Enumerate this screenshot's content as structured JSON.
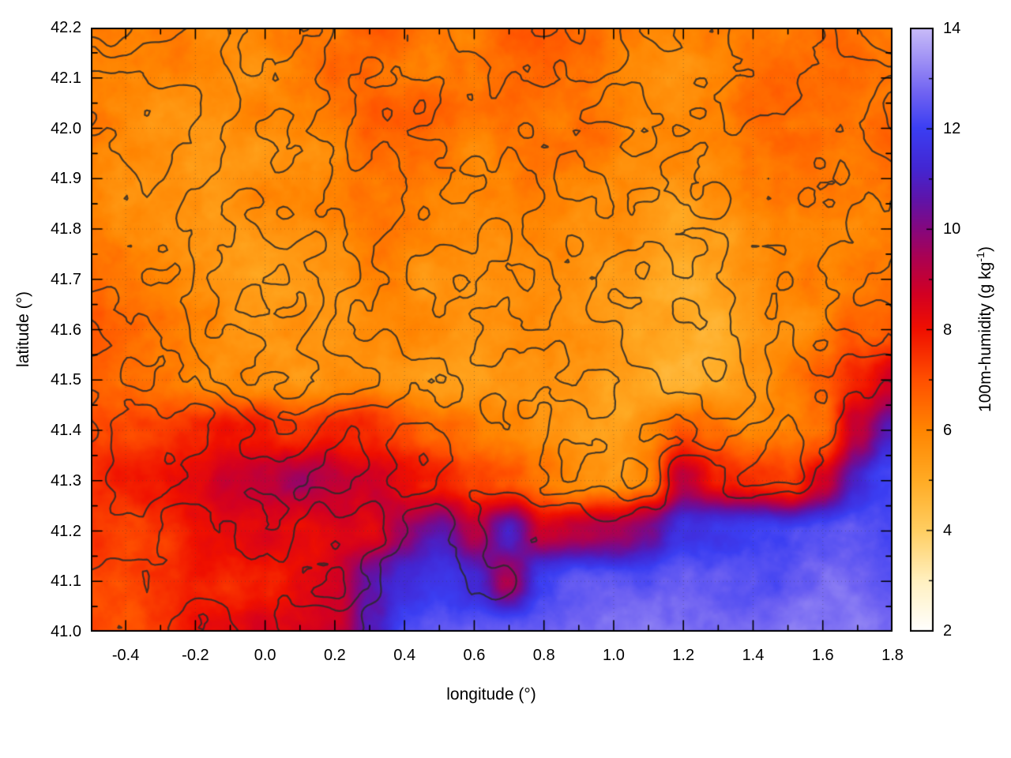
{
  "chart_data": {
    "type": "heatmap",
    "title": "",
    "xlabel": "longitude (°)",
    "ylabel": "latitude (°)",
    "x_range": [
      -0.5,
      1.8
    ],
    "y_range": [
      41.0,
      42.2
    ],
    "x_tick_values": [
      -0.4,
      -0.2,
      0.0,
      0.2,
      0.4,
      0.6,
      0.8,
      1.0,
      1.2,
      1.4,
      1.6,
      1.8
    ],
    "x_tick_labels": [
      "-0.4",
      "-0.2",
      "0.0",
      "0.2",
      "0.4",
      "0.6",
      "0.8",
      "1.0",
      "1.2",
      "1.4",
      "1.6",
      "1.8"
    ],
    "y_tick_values": [
      41.0,
      41.1,
      41.2,
      41.3,
      41.4,
      41.5,
      41.6,
      41.7,
      41.8,
      41.9,
      42.0,
      42.1,
      42.2
    ],
    "y_tick_labels": [
      "41.0",
      "41.1",
      "41.2",
      "41.3",
      "41.4",
      "41.5",
      "41.6",
      "41.7",
      "41.8",
      "41.9",
      "42.0",
      "42.1",
      "42.2"
    ],
    "x_minor_step": 0.1,
    "y_minor_step": 0.05,
    "cb_minor_step": 1,
    "grid_style": "dotted gray at major ticks",
    "colorbar": {
      "label_prefix": "100m-humidity (g kg",
      "label_sup": "-1",
      "label_suffix": ")",
      "range": [
        2,
        14
      ],
      "tick_values": [
        2,
        4,
        6,
        8,
        10,
        12,
        14
      ],
      "tick_labels": [
        "2",
        "4",
        "6",
        "8",
        "10",
        "12",
        "14"
      ],
      "position": "right",
      "palette": [
        [
          2.0,
          "#ffffff"
        ],
        [
          3.0,
          "#fff0c0"
        ],
        [
          4.0,
          "#ffce62"
        ],
        [
          5.0,
          "#ffab24"
        ],
        [
          6.0,
          "#ff8501"
        ],
        [
          7.0,
          "#ff5000"
        ],
        [
          8.0,
          "#f01000"
        ],
        [
          8.7,
          "#d30022"
        ],
        [
          9.4,
          "#ad0150"
        ],
        [
          10.0,
          "#85077e"
        ],
        [
          10.6,
          "#5e14aa"
        ],
        [
          11.2,
          "#4326d2"
        ],
        [
          12.0,
          "#3b3ef2"
        ],
        [
          12.7,
          "#6f62f2"
        ],
        [
          13.3,
          "#9a8cf4"
        ],
        [
          14.0,
          "#c9bcf8"
        ]
      ]
    },
    "grid": {
      "comment": "estimated 100m-humidity (g/kg) on 0.1 deg grid, rows north (42.2) to south (41.0), cols west (-0.5) to east (1.8)",
      "lon_start": -0.5,
      "lon_step": 0.1,
      "lat_start": 42.2,
      "lat_step": -0.1,
      "values": [
        [
          6.3,
          6.2,
          6.0,
          5.8,
          5.8,
          5.9,
          6.0,
          6.2,
          6.6,
          6.8,
          6.4,
          6.2,
          6.5,
          6.8,
          6.6,
          6.2,
          6.0,
          6.1,
          6.3,
          6.5,
          6.4,
          6.6,
          6.5,
          6.4
        ],
        [
          6.2,
          6.1,
          5.9,
          5.8,
          5.7,
          5.8,
          6.0,
          6.3,
          6.5,
          6.4,
          6.2,
          6.0,
          6.3,
          6.6,
          6.4,
          6.1,
          5.9,
          5.8,
          6.0,
          6.4,
          6.6,
          6.5,
          6.3,
          6.2
        ],
        [
          6.2,
          6.0,
          5.8,
          5.7,
          5.6,
          5.7,
          5.9,
          6.2,
          6.8,
          6.6,
          6.3,
          6.0,
          6.2,
          6.4,
          6.2,
          6.0,
          5.8,
          5.7,
          5.9,
          6.2,
          6.4,
          6.3,
          6.2,
          6.4
        ],
        [
          6.0,
          5.9,
          5.8,
          5.6,
          5.5,
          5.6,
          5.8,
          6.0,
          6.3,
          6.4,
          6.2,
          5.9,
          6.0,
          6.2,
          6.0,
          5.8,
          5.6,
          5.5,
          5.7,
          6.0,
          6.2,
          6.1,
          6.0,
          6.2
        ],
        [
          6.2,
          6.0,
          5.8,
          5.6,
          5.5,
          5.5,
          5.7,
          5.9,
          6.1,
          6.2,
          6.0,
          5.8,
          5.9,
          6.0,
          5.8,
          5.6,
          5.4,
          5.2,
          5.3,
          5.6,
          5.9,
          6.0,
          6.0,
          6.1
        ],
        [
          6.3,
          6.1,
          5.9,
          5.7,
          5.5,
          5.4,
          5.6,
          5.8,
          6.0,
          6.0,
          5.8,
          5.7,
          5.8,
          5.9,
          5.7,
          5.4,
          5.2,
          5.0,
          5.1,
          5.4,
          5.8,
          6.0,
          6.2,
          6.3
        ],
        [
          6.9,
          6.6,
          6.0,
          5.8,
          5.6,
          5.4,
          5.5,
          5.7,
          5.9,
          5.8,
          5.6,
          5.5,
          5.6,
          5.7,
          5.5,
          5.2,
          5.0,
          4.9,
          5.0,
          5.3,
          5.7,
          6.1,
          6.6,
          7.0
        ],
        [
          6.8,
          6.6,
          6.3,
          6.1,
          5.9,
          5.7,
          5.6,
          5.8,
          5.7,
          5.4,
          5.2,
          5.3,
          5.5,
          5.6,
          5.4,
          5.1,
          4.9,
          4.8,
          5.0,
          5.4,
          5.9,
          6.5,
          7.5,
          8.8
        ],
        [
          7.2,
          7.2,
          7.4,
          7.8,
          8.2,
          8.0,
          7.6,
          7.8,
          7.4,
          6.8,
          6.4,
          6.2,
          5.9,
          5.5,
          5.3,
          5.4,
          6.0,
          6.8,
          6.4,
          6.0,
          6.2,
          6.6,
          9.0,
          10.8
        ],
        [
          7.6,
          7.8,
          8.0,
          8.4,
          9.0,
          9.4,
          9.6,
          9.2,
          8.6,
          8.2,
          7.8,
          7.4,
          7.0,
          6.0,
          5.6,
          5.6,
          6.2,
          9.2,
          7.8,
          7.4,
          7.2,
          8.8,
          11.2,
          12.0
        ],
        [
          7.4,
          7.2,
          7.6,
          8.0,
          8.2,
          8.4,
          8.0,
          8.6,
          8.4,
          9.6,
          10.6,
          9.0,
          10.8,
          8.6,
          9.0,
          9.4,
          10.0,
          11.6,
          12.0,
          12.2,
          12.0,
          12.2,
          12.4,
          12.3
        ],
        [
          7.2,
          7.0,
          7.4,
          7.8,
          7.6,
          7.8,
          8.2,
          8.4,
          10.5,
          11.5,
          11.8,
          11.0,
          9.5,
          12.0,
          12.4,
          12.5,
          12.4,
          12.5,
          12.6,
          12.5,
          12.4,
          12.6,
          12.7,
          12.5
        ],
        [
          7.4,
          7.2,
          7.6,
          8.0,
          7.8,
          8.2,
          8.6,
          9.0,
          11.0,
          12.0,
          12.2,
          12.4,
          12.6,
          12.4,
          12.8,
          13.0,
          12.9,
          12.8,
          13.0,
          12.9,
          12.8,
          13.0,
          13.1,
          13.0
        ]
      ]
    },
    "contours": {
      "description": "dark gray terrain contour overlay",
      "color": "#2a2a2a",
      "levels": [
        0.5,
        0.57,
        0.64,
        0.71,
        0.78
      ]
    }
  }
}
